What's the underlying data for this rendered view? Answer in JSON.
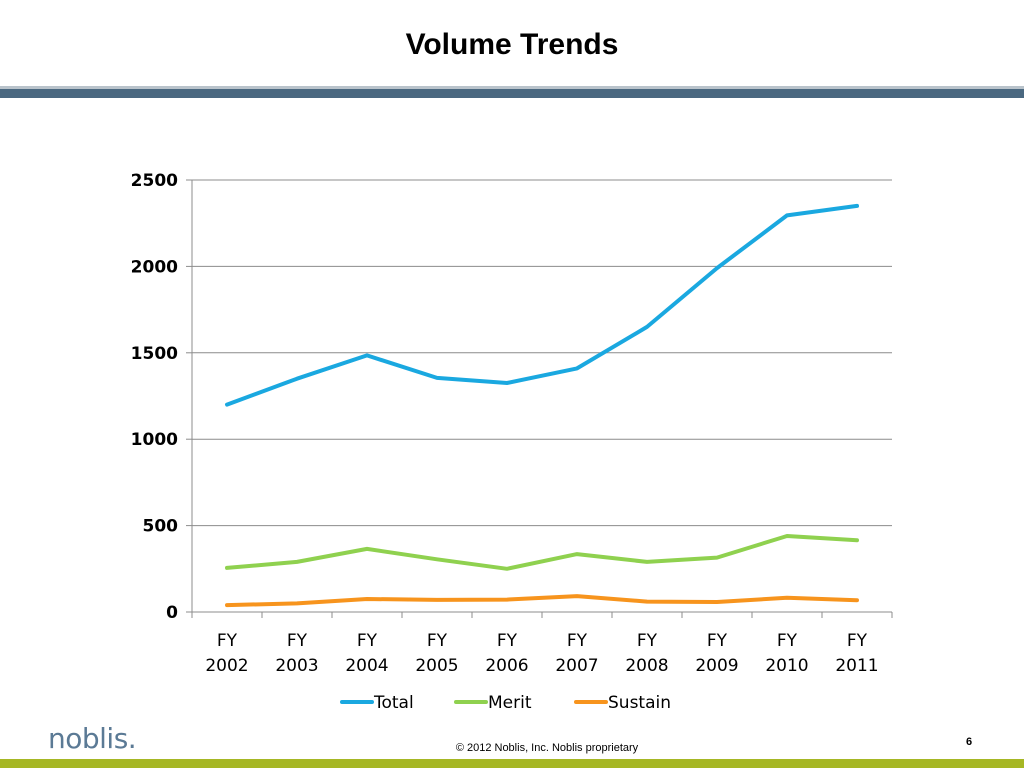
{
  "slide": {
    "title": "Volume Trends",
    "footer": "© 2012 Noblis, Inc. Noblis proprietary",
    "page_number": "6",
    "logo_text": "noblis."
  },
  "colors": {
    "title_bar": "#4a6880",
    "bottom_bar": "#a6b724",
    "logo": "#5b7a95"
  },
  "chart_data": {
    "type": "line",
    "title": "",
    "xlabel": "",
    "ylabel": "",
    "categories": [
      "FY 2002",
      "FY 2003",
      "FY 2004",
      "FY 2005",
      "FY 2006",
      "FY 2007",
      "FY 2008",
      "FY 2009",
      "FY 2010",
      "FY 2011"
    ],
    "ylim": [
      0,
      2500
    ],
    "yticks": [
      0,
      500,
      1000,
      1500,
      2000,
      2500
    ],
    "grid": true,
    "legend": "bottom",
    "series": [
      {
        "name": "Total",
        "color": "#1aa8e0",
        "values": [
          1200,
          1350,
          1485,
          1355,
          1325,
          1410,
          1650,
          1990,
          2295,
          2350
        ]
      },
      {
        "name": "Merit",
        "color": "#8fd14f",
        "values": [
          255,
          290,
          365,
          305,
          250,
          335,
          290,
          315,
          440,
          415
        ]
      },
      {
        "name": "Sustain",
        "color": "#f7941d",
        "values": [
          40,
          50,
          75,
          70,
          72,
          92,
          60,
          58,
          82,
          68
        ]
      }
    ]
  }
}
